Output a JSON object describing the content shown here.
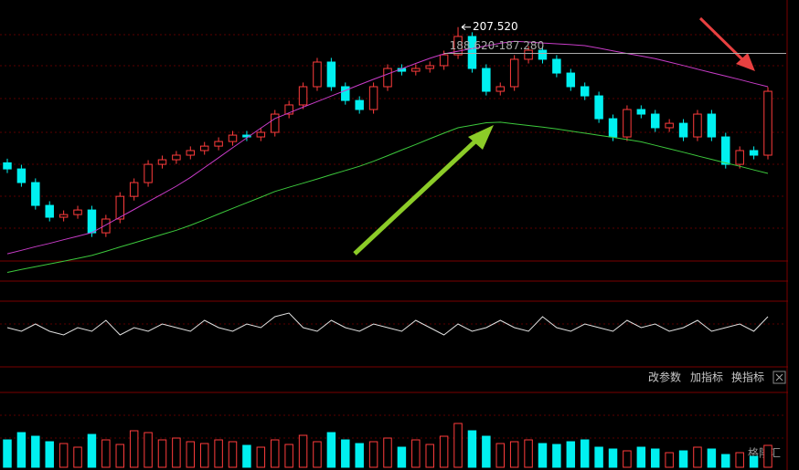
{
  "chart_data": {
    "type": "candlestick",
    "up_color": "#ff3c3c",
    "down_color": "#00f0f0",
    "open": [
      110.0,
      105.6,
      95.8,
      79.4,
      70.9,
      72.8,
      76.1,
      59.7,
      69.6,
      85.9,
      95.8,
      108.9,
      112.2,
      115.5,
      118.8,
      122.0,
      125.3,
      129.9,
      128.6,
      131.9,
      145.0,
      151.6,
      164.7,
      182.4,
      164.7,
      154.8,
      148.3,
      164.7,
      177.8,
      175.8,
      177.8,
      179.8,
      187.6,
      200.8,
      177.8,
      161.4,
      164.7,
      184.4,
      190.9,
      184.4,
      174.5,
      164.7,
      158.1,
      141.7,
      128.6,
      148.3,
      145.0,
      135.2,
      138.4,
      128.6,
      145.0,
      128.6,
      108.9,
      118.8,
      115.5
    ],
    "high": [
      113.0,
      108.6,
      98.8,
      82.4,
      75.8,
      79.1,
      79.1,
      72.6,
      88.9,
      98.8,
      111.9,
      115.2,
      118.5,
      121.8,
      125.0,
      128.3,
      132.9,
      132.9,
      134.9,
      148.0,
      154.6,
      167.7,
      185.4,
      185.4,
      167.7,
      157.8,
      167.7,
      180.8,
      180.8,
      180.8,
      182.8,
      190.6,
      207.52,
      203.8,
      180.8,
      167.7,
      187.4,
      193.9,
      193.9,
      187.4,
      177.5,
      167.7,
      161.1,
      144.7,
      151.3,
      151.3,
      148.0,
      141.4,
      141.4,
      148.0,
      148.0,
      131.6,
      121.8,
      121.8,
      164.4
    ],
    "low": [
      102.6,
      92.8,
      76.4,
      67.9,
      67.9,
      69.8,
      56.7,
      56.7,
      66.6,
      82.9,
      92.8,
      105.9,
      109.2,
      112.5,
      115.8,
      119.0,
      122.3,
      125.6,
      125.6,
      128.9,
      142.0,
      148.6,
      161.7,
      161.7,
      151.8,
      145.3,
      145.3,
      161.7,
      172.8,
      172.8,
      174.8,
      176.8,
      184.6,
      174.8,
      158.4,
      158.4,
      161.7,
      181.4,
      181.4,
      171.5,
      161.7,
      155.1,
      138.7,
      125.6,
      125.6,
      142.0,
      132.2,
      132.2,
      125.6,
      125.6,
      125.6,
      105.9,
      105.9,
      112.5,
      112.5
    ],
    "close": [
      105.6,
      95.8,
      79.4,
      70.9,
      72.8,
      76.1,
      59.7,
      69.6,
      85.9,
      95.8,
      108.9,
      112.2,
      115.5,
      118.8,
      122.0,
      125.3,
      129.9,
      128.6,
      131.9,
      145.0,
      151.6,
      164.7,
      182.4,
      164.7,
      154.8,
      148.3,
      164.7,
      177.8,
      175.8,
      177.8,
      179.8,
      187.6,
      200.8,
      177.8,
      161.4,
      164.7,
      184.4,
      190.9,
      184.4,
      174.5,
      164.7,
      158.1,
      141.7,
      128.6,
      148.3,
      145.0,
      135.2,
      138.4,
      128.6,
      145.0,
      128.6,
      108.9,
      118.8,
      115.5,
      161.4
    ],
    "ylim": [
      25,
      227
    ],
    "series": [
      {
        "color": "#c83cc8",
        "values": [
          44.6,
          47.1,
          49.7,
          52.1,
          54.7,
          57.2,
          59.8,
          65.4,
          71.0,
          76.5,
          82.1,
          87.6,
          93.2,
          99.5,
          106.6,
          113.7,
          120.8,
          127.9,
          134.9,
          141.8,
          145.9,
          150.0,
          154.0,
          158.0,
          162.0,
          166.1,
          170.0,
          173.8,
          177.6,
          181.4,
          185.1,
          188.3,
          190.2,
          192.1,
          194.0,
          195.9,
          197.3,
          196.8,
          196.1,
          195.5,
          194.9,
          194.2,
          192.4,
          190.5,
          188.6,
          186.7,
          184.8,
          182.4,
          179.9,
          177.3,
          174.8,
          172.3,
          169.8,
          167.2,
          164.7
        ]
      },
      {
        "color": "#3cc83c",
        "values": [
          31.2,
          33.3,
          35.3,
          37.3,
          39.3,
          41.3,
          43.4,
          46.4,
          49.5,
          52.5,
          55.5,
          58.5,
          61.5,
          65.1,
          69.1,
          73.2,
          77.3,
          81.3,
          85.3,
          89.4,
          92.4,
          95.4,
          98.4,
          101.5,
          104.5,
          107.5,
          111.1,
          115.1,
          119.2,
          123.2,
          127.3,
          131.3,
          135.2,
          137.0,
          138.8,
          139.2,
          138.0,
          136.8,
          135.7,
          134.3,
          132.8,
          131.3,
          129.8,
          128.3,
          126.7,
          125.1,
          122.6,
          120.1,
          117.6,
          115.0,
          112.5,
          109.9,
          107.5,
          104.9,
          102.4
        ]
      }
    ],
    "high_label": "207.520",
    "range_label": "188.620-187.280",
    "range_line": 188.62,
    "indicator": {
      "color": "#e0e0e0",
      "ylim": [
        0,
        10
      ],
      "values": [
        4,
        3,
        5,
        3,
        2,
        4,
        3,
        6,
        2,
        4,
        3,
        5,
        4,
        3,
        6,
        4,
        3,
        5,
        4,
        7,
        8,
        4,
        3,
        6,
        4,
        3,
        5,
        4,
        3,
        6,
        4,
        2,
        5,
        3,
        4,
        6,
        4,
        3,
        7,
        4,
        3,
        5,
        4,
        3,
        6,
        4,
        5,
        3,
        4,
        6,
        3,
        4,
        5,
        3,
        7
      ]
    },
    "volume": {
      "ylim": [
        0,
        60
      ],
      "values": [
        30,
        38,
        34,
        28,
        26,
        22,
        36,
        30,
        25,
        40,
        38,
        30,
        32,
        28,
        26,
        30,
        28,
        24,
        22,
        30,
        25,
        35,
        28,
        38,
        30,
        26,
        28,
        32,
        22,
        30,
        25,
        34,
        48,
        40,
        34,
        26,
        28,
        30,
        26,
        25,
        28,
        30,
        22,
        20,
        18,
        22,
        20,
        16,
        18,
        22,
        20,
        14,
        16,
        12,
        24
      ]
    },
    "buttons": [
      "改参数",
      "加指标",
      "换指标"
    ],
    "watermark": "格隆汇"
  }
}
